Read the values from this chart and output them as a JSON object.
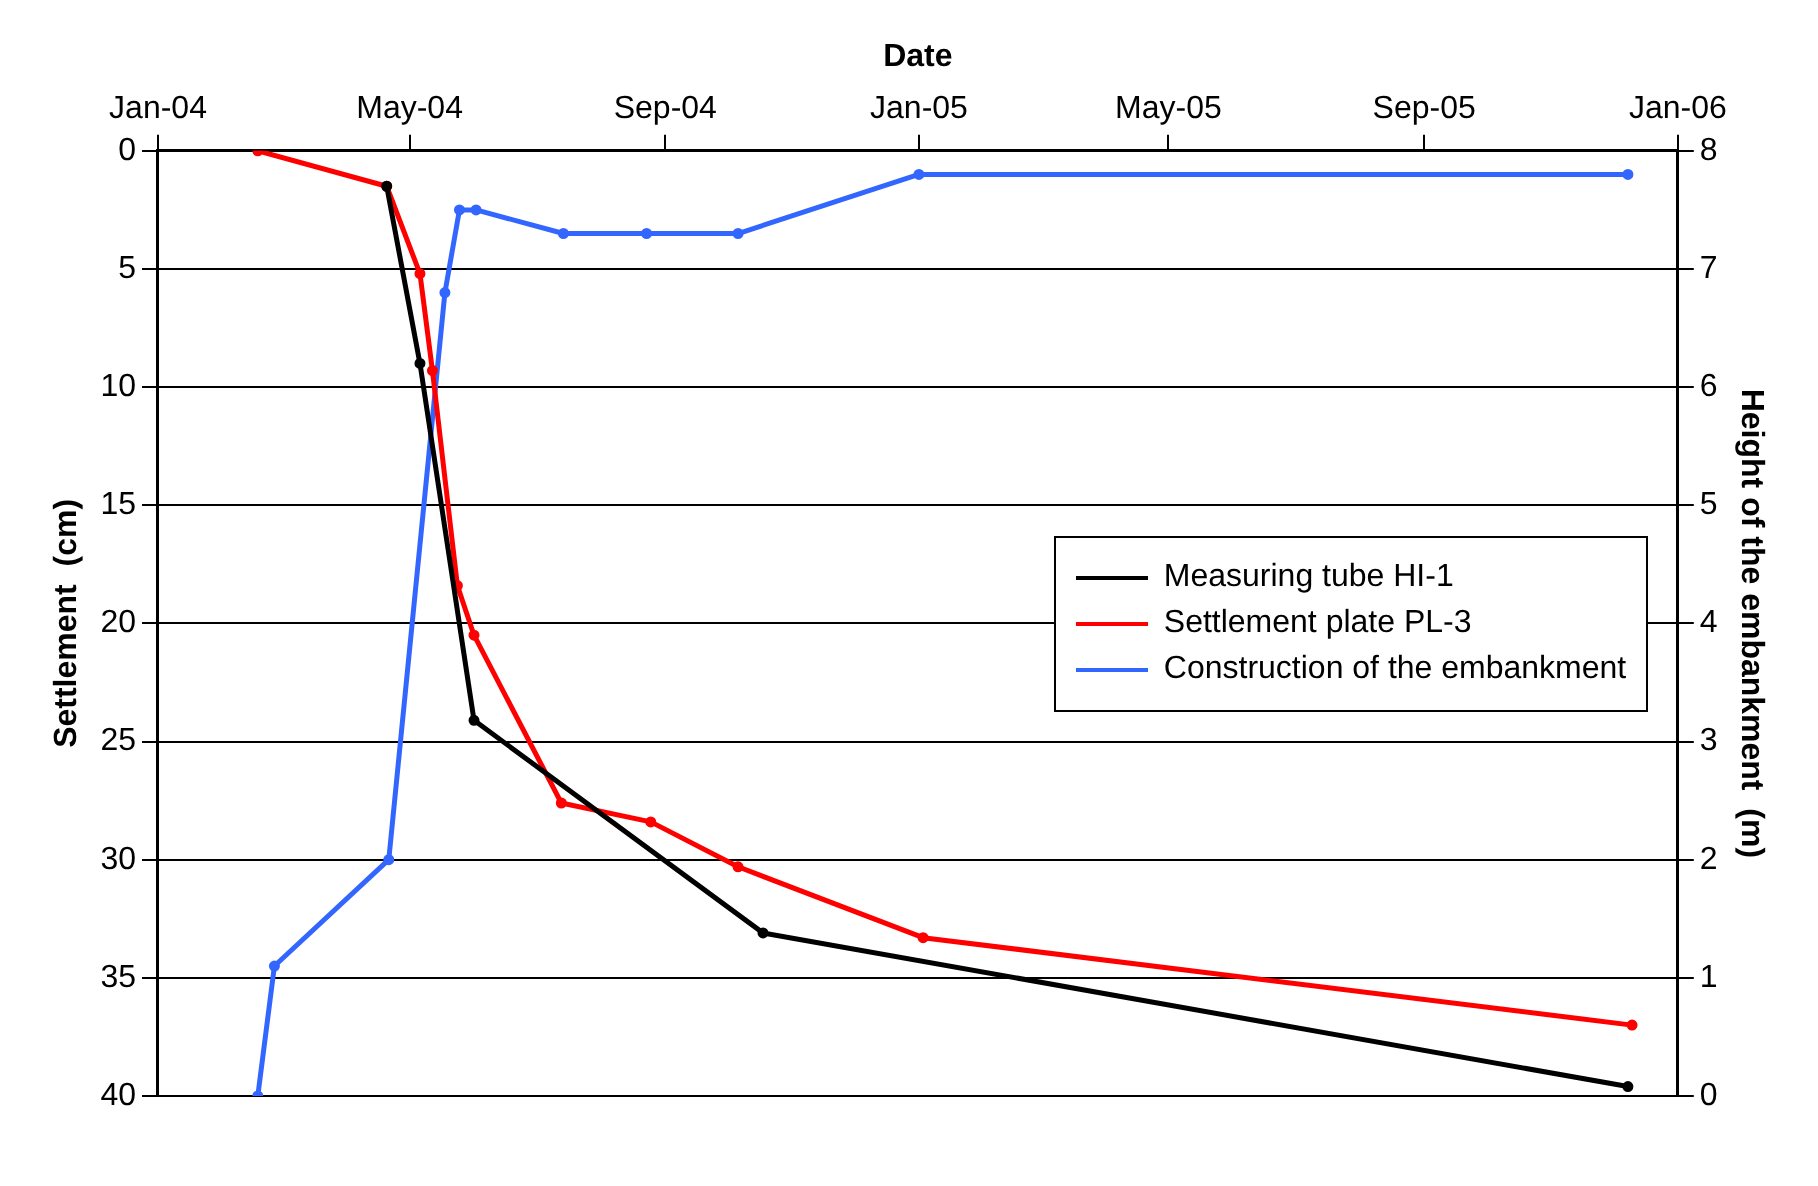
{
  "chart_data": {
    "type": "line",
    "xlabel": "Date",
    "ylabel": "Settlement  (cm)",
    "y2label": "Height of the embankment  (m)",
    "xlim": [
      "2004-01-01",
      "2006-01-01"
    ],
    "xticks": [
      {
        "value": "2004-01-01",
        "label": "Jan-04"
      },
      {
        "value": "2004-05-01",
        "label": "May-04"
      },
      {
        "value": "2004-09-01",
        "label": "Sep-04"
      },
      {
        "value": "2005-01-01",
        "label": "Jan-05"
      },
      {
        "value": "2005-05-01",
        "label": "May-05"
      },
      {
        "value": "2005-09-01",
        "label": "Sep-05"
      },
      {
        "value": "2006-01-01",
        "label": "Jan-06"
      }
    ],
    "ylim": [
      40,
      0
    ],
    "yticks": [
      0,
      5,
      10,
      15,
      20,
      25,
      30,
      35,
      40
    ],
    "y2lim": [
      0,
      8
    ],
    "y2ticks": [
      0,
      1,
      2,
      3,
      4,
      5,
      6,
      7,
      8
    ],
    "grid": "y",
    "legend": "right",
    "marker": "circle",
    "line_style": "solid",
    "series": [
      {
        "name": "Measuring tube HI-1",
        "color": "#000000",
        "x": [
          "2004-04-20",
          "2004-05-06",
          "2004-06-01",
          "2004-10-18",
          "2005-12-08"
        ],
        "values": [
          1.5,
          9,
          24.1,
          33.1,
          39.6
        ]
      },
      {
        "name": "Settlement plate PL-3",
        "color": "#ff0000",
        "x": [
          "2004-02-18",
          "2004-04-20",
          "2004-05-06",
          "2004-05-12",
          "2004-05-24",
          "2004-06-01",
          "2004-07-13",
          "2004-08-25",
          "2004-10-06",
          "2005-01-03",
          "2005-12-10"
        ],
        "values": [
          0,
          1.5,
          5.2,
          9.3,
          18.4,
          20.5,
          27.6,
          28.4,
          30.3,
          33.3,
          37.0
        ]
      },
      {
        "name": "Construction of the embankment",
        "color": "#3366ff",
        "axis": "y2",
        "x": [
          "2004-02-18",
          "2004-02-26",
          "2004-04-21",
          "2004-05-18",
          "2004-05-25",
          "2004-06-02",
          "2004-07-14",
          "2004-08-23",
          "2004-10-06",
          "2005-01-01",
          "2005-12-08"
        ],
        "values": [
          0,
          1.1,
          2.0,
          6.8,
          7.5,
          7.5,
          7.3,
          7.3,
          7.3,
          7.8,
          7.8
        ]
      }
    ]
  }
}
